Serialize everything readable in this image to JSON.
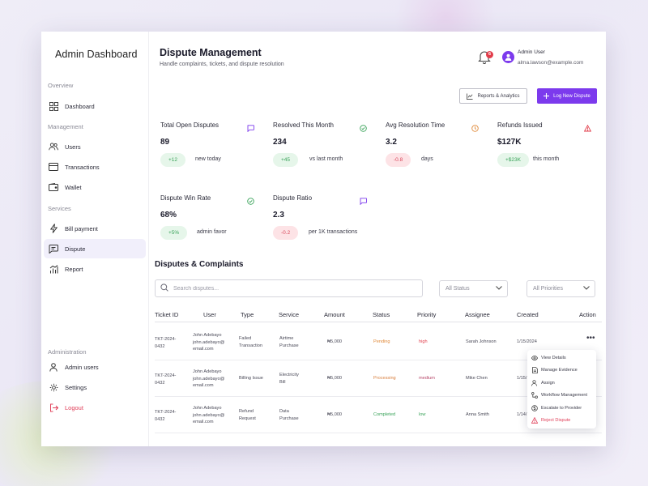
{
  "sidebar": {
    "brand": "Admin Dashboard",
    "sections": {
      "overview": "Overview",
      "management": "Management",
      "services": "Services",
      "administration": "Administration"
    },
    "items": {
      "dashboard": "Dashboard",
      "users": "Users",
      "transactions": "Transactions",
      "wallet": "Wallet",
      "bill_payment": "Bill payment",
      "dispute": "Dispute",
      "report": "Report",
      "admin_users": "Admin users",
      "settings": "Settings",
      "logout": "Logout"
    },
    "active": "dispute"
  },
  "header": {
    "title": "Dispute Management",
    "subtitle": "Handle complaints, tickets, and dispute resolution",
    "notification_count": "6",
    "user_name": "Admin User",
    "user_email": "alma.lawson@example.com"
  },
  "actions": {
    "reports": "Reports & Analytics",
    "log_new": "Log New Dispute"
  },
  "stats": [
    {
      "label": "Total Open Disputes",
      "value": "89",
      "pill": "+12",
      "pill_tone": "green",
      "note": "new today",
      "icon": "chat-icon"
    },
    {
      "label": "Resolved This Month",
      "value": "234",
      "pill": "+45",
      "pill_tone": "green",
      "note": "vs last month",
      "icon": "check-circle-icon"
    },
    {
      "label": "Avg Resolution Time",
      "value": "3.2",
      "pill": "-0.8",
      "pill_tone": "red",
      "note": "days",
      "icon": "clock-icon"
    },
    {
      "label": "Refunds Issued",
      "value": "$127K",
      "pill": "+$23K",
      "pill_tone": "green",
      "note": "this month",
      "icon": "warning-icon"
    },
    {
      "label": "Dispute Win Rate",
      "value": "68%",
      "pill": "+5%",
      "pill_tone": "green",
      "note": "admin favor",
      "icon": "check-circle-icon"
    },
    {
      "label": "Dispute Ratio",
      "value": "2.3",
      "pill": "-0.2",
      "pill_tone": "red",
      "note": "per 1K transactions",
      "icon": "chat-icon"
    }
  ],
  "table": {
    "title": "Disputes & Complaints",
    "search_placeholder": "Search disputes...",
    "status_filter": "All Status",
    "priority_filter": "All Priorities",
    "columns": {
      "ticket": "Ticket ID",
      "user": "User",
      "type": "Type",
      "service": "Service",
      "amount": "Amount",
      "status": "Status",
      "priority": "Priority",
      "assignee": "Assignee",
      "created": "Created",
      "action": "Action"
    },
    "rows": [
      {
        "ticket_a": "TKT-2024-",
        "ticket_b": "0432",
        "user_name": "John Adebayo",
        "user_email_a": "john.adebayo@",
        "user_email_b": "email.com",
        "type_a": "Failed",
        "type_b": "Transaction",
        "service_a": "Airtime",
        "service_b": "Purchase",
        "amount": "₦5,000",
        "status": "Pending",
        "priority": "high",
        "assignee": "Sarah Johnson",
        "created": "1/15/2024"
      },
      {
        "ticket_a": "TKT-2024-",
        "ticket_b": "0432",
        "user_name": "John Adebayo",
        "user_email_a": "john.adebayo@",
        "user_email_b": "email.com",
        "type_a": "Billing Issue",
        "type_b": "",
        "service_a": "Electricity",
        "service_b": "Bill",
        "amount": "₦5,000",
        "status": "Processing",
        "priority": "medium",
        "assignee": "Mike Chen",
        "created": "1/15/"
      },
      {
        "ticket_a": "TKT-2024-",
        "ticket_b": "0432",
        "user_name": "John Adebayo",
        "user_email_a": "john.adebayo@",
        "user_email_b": "email.com",
        "type_a": "Refund",
        "type_b": "Request",
        "service_a": "Data",
        "service_b": "Purchase",
        "amount": "₦5,000",
        "status": "Completed",
        "priority": "low",
        "assignee": "Anna Smith",
        "created": "1/14/"
      }
    ]
  },
  "row_menu": {
    "view": "View Details",
    "evidence": "Manage Evidence",
    "assign": "Assign",
    "workflow": "Workflow Management",
    "escalate": "Escalate to Provider",
    "reject": "Reject Dispute"
  },
  "colors": {
    "accent": "#7c3aed",
    "success": "#3aa35a",
    "danger": "#e23d4b",
    "warning": "#e08a3a"
  }
}
